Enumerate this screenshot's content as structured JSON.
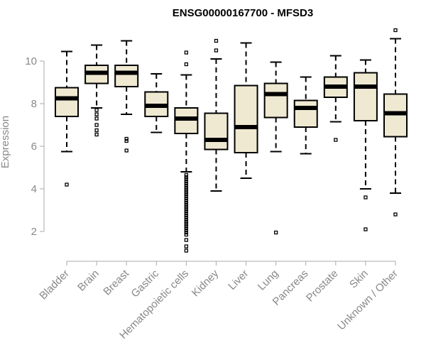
{
  "chart_data": {
    "type": "boxplot",
    "title": "ENSG00000167700 - MFSD3",
    "xlabel": "",
    "ylabel": "Expression",
    "ylim": [
      0.8,
      11.6
    ],
    "yticks": [
      2,
      4,
      6,
      8,
      10
    ],
    "categories": [
      "Bladder",
      "Brain",
      "Breast",
      "Gastric",
      "Hematopoietic cells",
      "Kidney",
      "Liver",
      "Lung",
      "Pancreas",
      "Prostate",
      "Skin",
      "Unknown / Other"
    ],
    "boxes": [
      {
        "whisker_low": 5.75,
        "q1": 7.4,
        "median": 8.25,
        "q3": 8.75,
        "whisker_high": 10.45,
        "outliers": [
          4.2
        ]
      },
      {
        "whisker_low": 7.8,
        "q1": 8.95,
        "median": 9.45,
        "q3": 9.8,
        "whisker_high": 10.75,
        "outliers": [
          7.7,
          7.5,
          7.3,
          7.0,
          6.75,
          6.55
        ]
      },
      {
        "whisker_low": 7.5,
        "q1": 8.8,
        "median": 9.45,
        "q3": 9.8,
        "whisker_high": 10.95,
        "outliers": [
          6.35,
          6.25,
          5.8
        ]
      },
      {
        "whisker_low": 6.65,
        "q1": 7.4,
        "median": 7.9,
        "q3": 8.55,
        "whisker_high": 9.4,
        "outliers": []
      },
      {
        "whisker_low": 4.8,
        "q1": 6.6,
        "median": 7.3,
        "q3": 7.8,
        "whisker_high": 9.35,
        "outliers": [
          10.4,
          9.85,
          4.65,
          4.55,
          4.45,
          4.35,
          4.25,
          4.15,
          4.05,
          3.95,
          3.85,
          3.75,
          3.65,
          3.55,
          3.45,
          3.35,
          3.25,
          3.15,
          3.05,
          2.95,
          2.85,
          2.75,
          2.65,
          2.55,
          2.45,
          2.35,
          2.25,
          2.15,
          2.05,
          1.95,
          1.85,
          1.6,
          1.3,
          1.1
        ]
      },
      {
        "whisker_low": 3.9,
        "q1": 5.85,
        "median": 6.3,
        "q3": 7.55,
        "whisker_high": 10.1,
        "outliers": [
          10.95,
          10.5
        ]
      },
      {
        "whisker_low": 4.5,
        "q1": 5.7,
        "median": 6.9,
        "q3": 8.85,
        "whisker_high": 10.85,
        "outliers": []
      },
      {
        "whisker_low": 5.75,
        "q1": 7.35,
        "median": 8.45,
        "q3": 8.95,
        "whisker_high": 9.95,
        "outliers": [
          1.95
        ]
      },
      {
        "whisker_low": 5.65,
        "q1": 6.9,
        "median": 7.8,
        "q3": 8.15,
        "whisker_high": 9.25,
        "outliers": []
      },
      {
        "whisker_low": 7.15,
        "q1": 8.3,
        "median": 8.8,
        "q3": 9.25,
        "whisker_high": 10.25,
        "outliers": [
          6.3
        ]
      },
      {
        "whisker_low": 4.0,
        "q1": 7.2,
        "median": 8.8,
        "q3": 9.45,
        "whisker_high": 10.05,
        "outliers": [
          3.6,
          2.1
        ]
      },
      {
        "whisker_low": 3.8,
        "q1": 6.45,
        "median": 7.55,
        "q3": 8.45,
        "whisker_high": 11.05,
        "outliers": [
          11.45,
          2.8
        ]
      }
    ],
    "grid": false,
    "colors": {
      "box_fill": "#efe9d2",
      "box_stroke": "#000000",
      "axis": "#aaaaaa",
      "labels": "#888888"
    }
  }
}
